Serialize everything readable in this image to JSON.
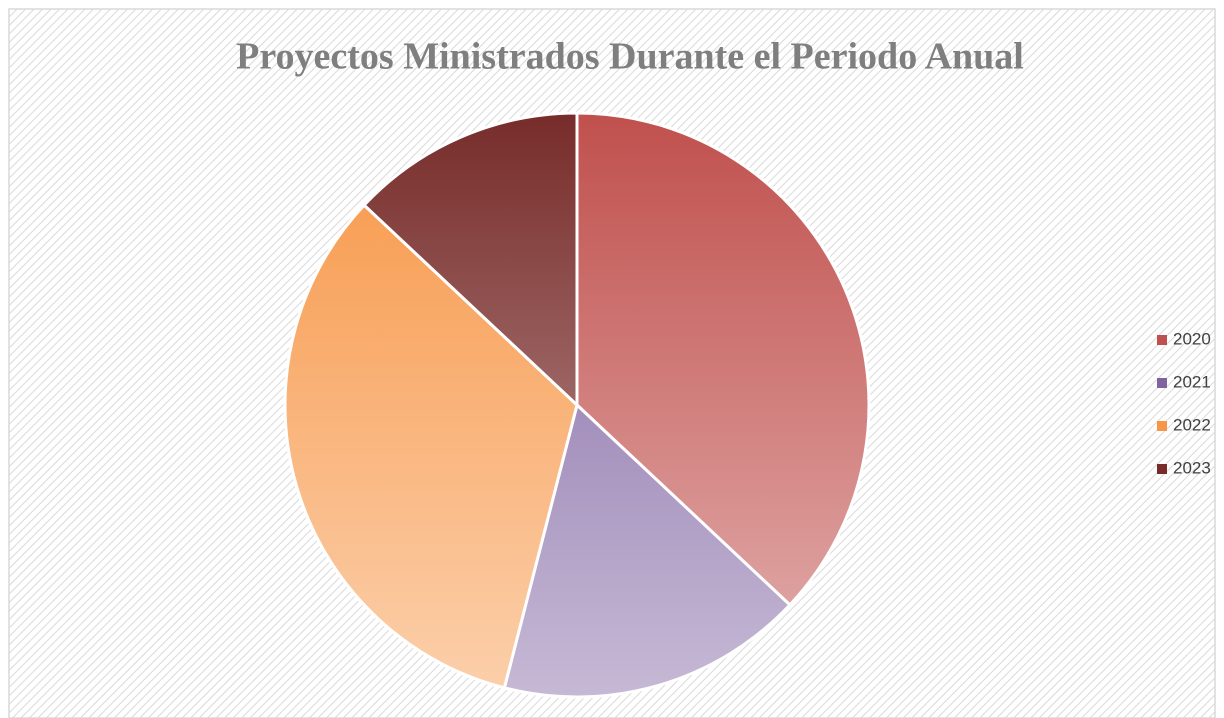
{
  "chart_data": {
    "type": "pie",
    "title": "Proyectos Ministrados Durante el Periodo Anual",
    "categories": [
      "2020",
      "2021",
      "2022",
      "2023"
    ],
    "values": [
      37,
      17,
      33,
      13
    ],
    "colors": [
      "#c0504d",
      "#8064a2",
      "#f79646",
      "#772c2a"
    ],
    "legend": "right"
  }
}
